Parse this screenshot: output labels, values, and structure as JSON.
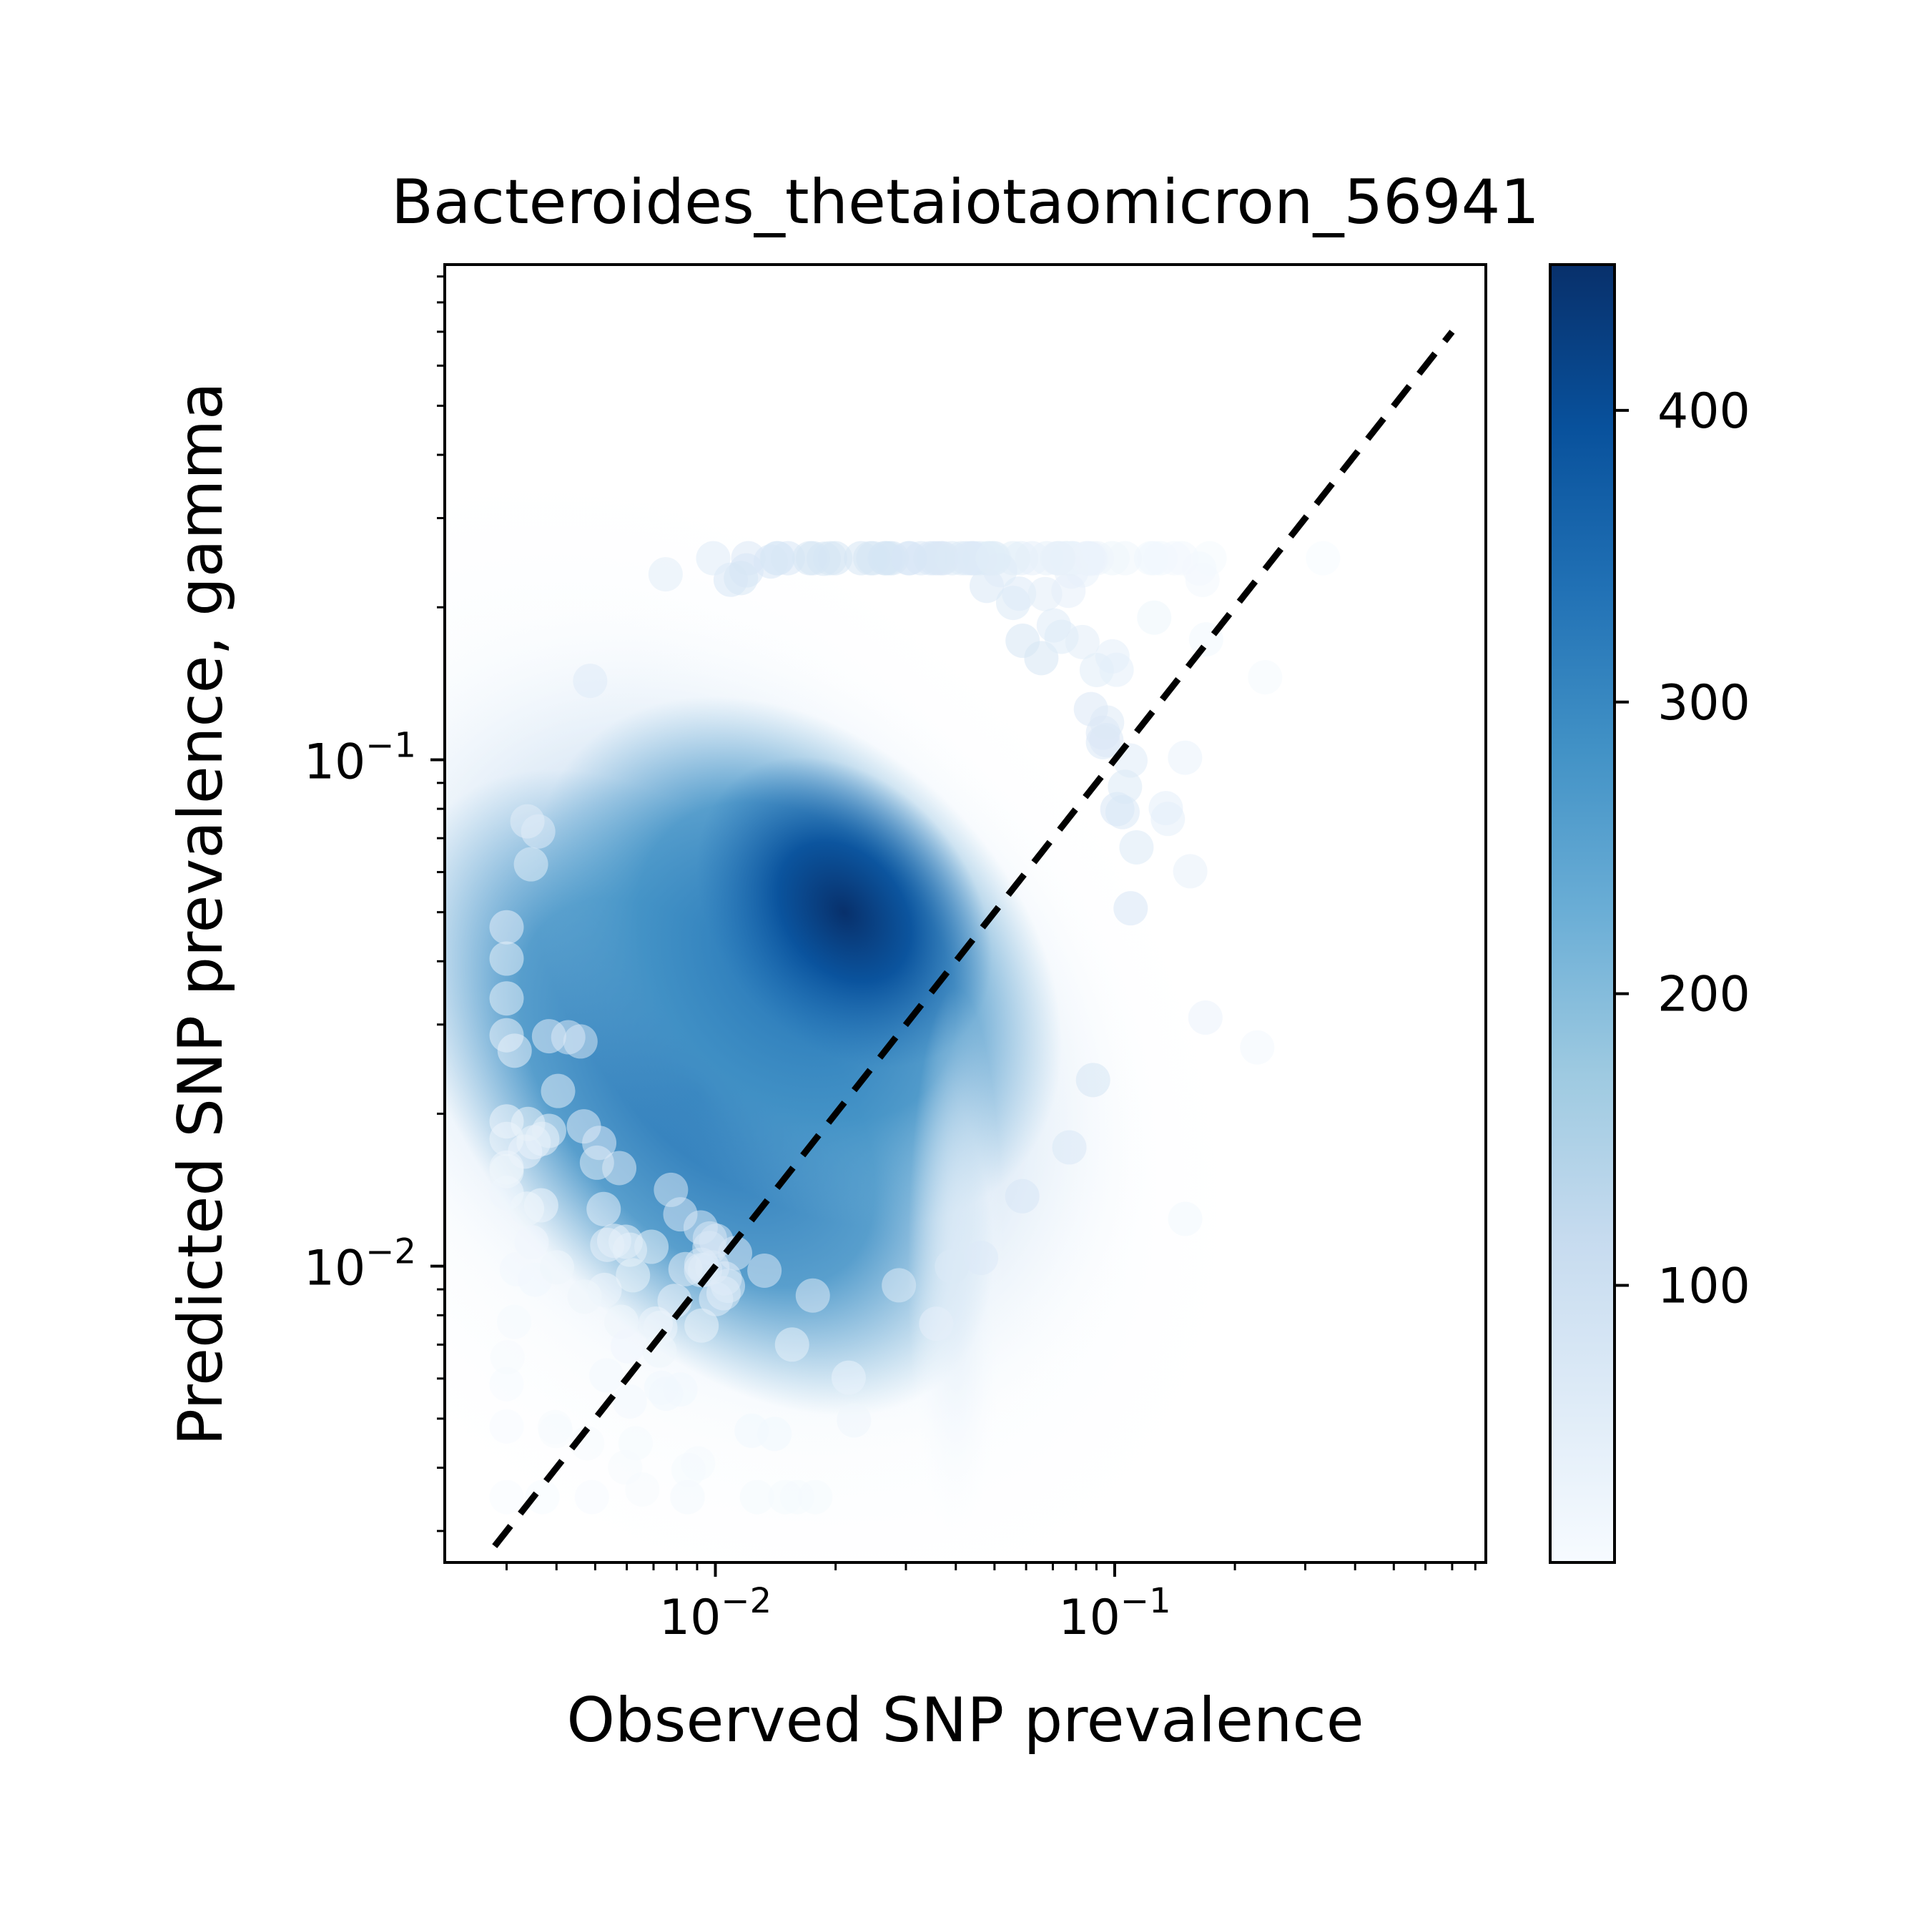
{
  "chart_data": {
    "type": "scatter",
    "title": "Bacteroides_thetaiotaomicron_56941",
    "xlabel": "Observed SNP prevalence",
    "ylabel": "Predicted SNP prevalence, gamma",
    "xscale": "log",
    "yscale": "log",
    "xlim": [
      0.0021,
      0.85
    ],
    "ylim": [
      0.0026,
      0.95
    ],
    "x_ticks": [
      {
        "value": 0.01,
        "base": "10",
        "exp": "−2"
      },
      {
        "value": 0.1,
        "base": "10",
        "exp": "−1"
      }
    ],
    "y_ticks": [
      {
        "value": 0.01,
        "base": "10",
        "exp": "−2"
      },
      {
        "value": 0.1,
        "base": "10",
        "exp": "−1"
      }
    ],
    "grid": false,
    "colormap": "Blues",
    "density_peak": {
      "x": 0.021,
      "y": 0.05,
      "value": 445
    },
    "reference_line": {
      "style": "dashed",
      "color": "#000000",
      "x": [
        0.0028,
        0.7
      ],
      "y": [
        0.0028,
        0.7
      ]
    },
    "colorbar": {
      "range": [
        5,
        450
      ],
      "ticks": [
        100,
        200,
        300,
        400
      ],
      "tick_labels": [
        "100",
        "200",
        "300",
        "400"
      ],
      "colors": [
        "#f7fbff",
        "#deebf7",
        "#c6dbef",
        "#9ecae1",
        "#6baed6",
        "#4292c6",
        "#2171b5",
        "#08519c",
        "#08306b"
      ]
    }
  }
}
